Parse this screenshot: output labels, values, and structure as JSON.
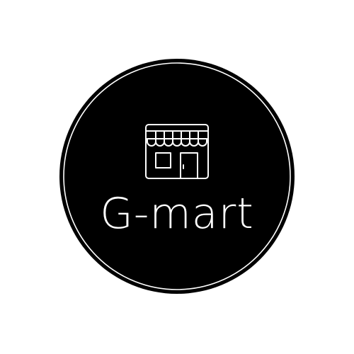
{
  "logo": {
    "wordmark": "G-mart",
    "icon": "storefront-icon",
    "colors": {
      "background": "#ffffff",
      "badge": "#000000",
      "line": "#ffffff"
    }
  }
}
